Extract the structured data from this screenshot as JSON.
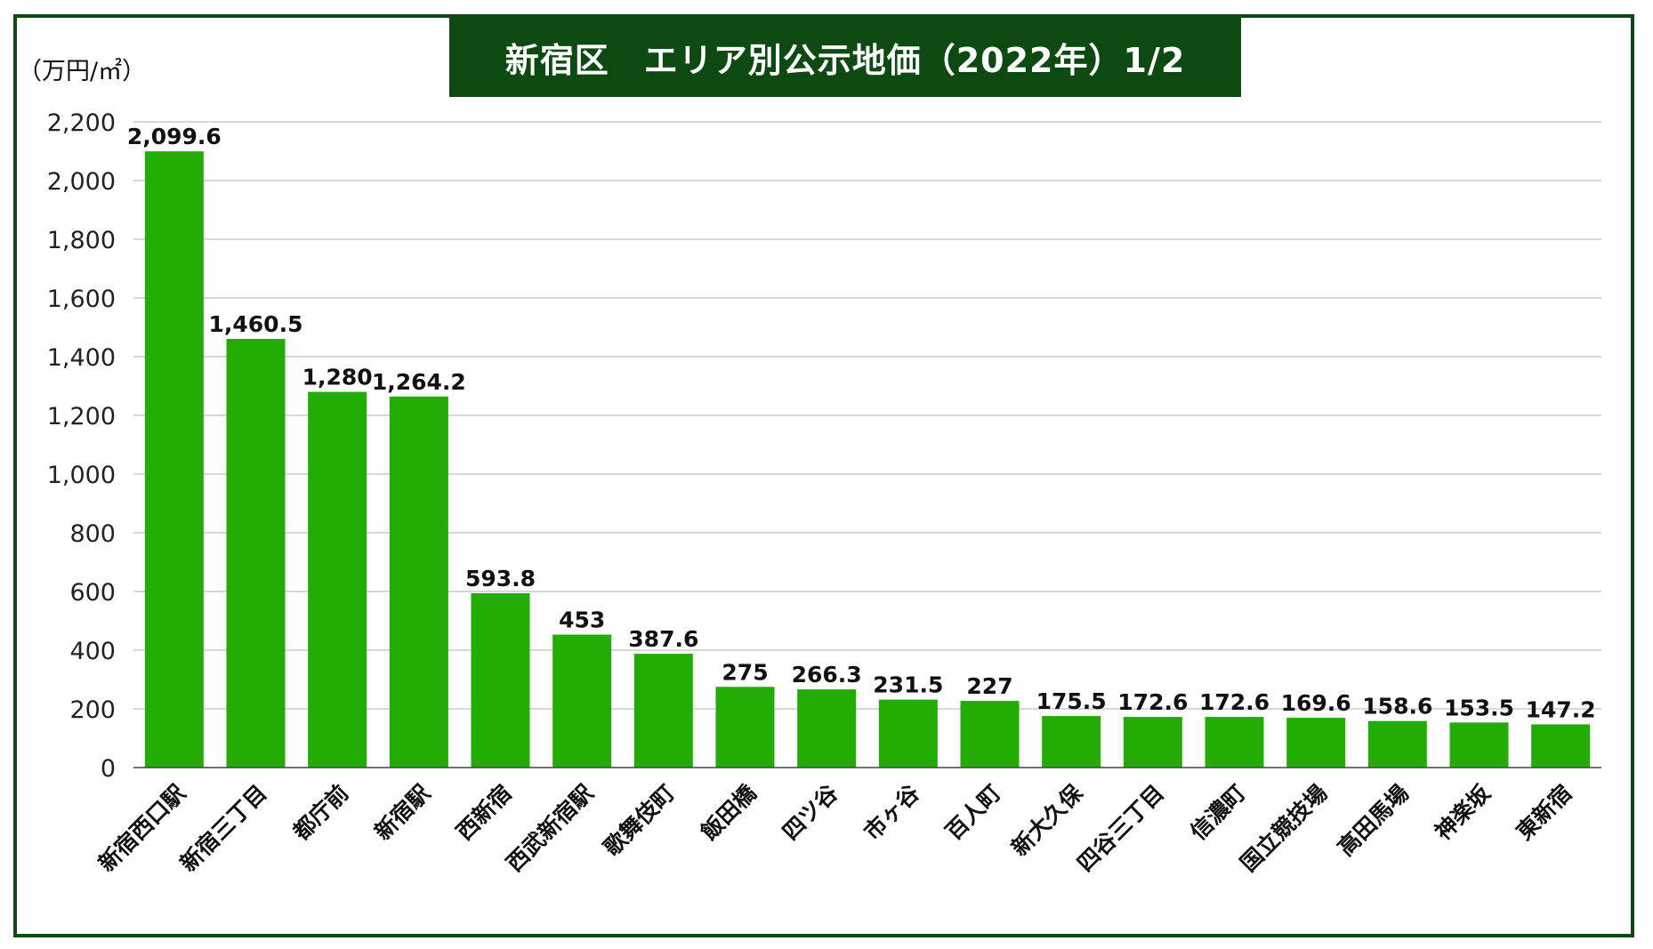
{
  "title": "新宿区　エリア別公示地価（2022年）1/2",
  "unit_label": "（万円/㎡）",
  "colors": {
    "bar": "#22ad04",
    "frame": "#0d4a12",
    "grid": "#cccccc"
  },
  "chart_data": {
    "type": "bar",
    "title": "新宿区　エリア別公示地価（2022年）1/2",
    "ylabel": "（万円/㎡）",
    "xlabel": "",
    "ylim": [
      0,
      2200
    ],
    "yticks": [
      0,
      200,
      400,
      600,
      800,
      1000,
      1200,
      1400,
      1600,
      1800,
      2000,
      2200
    ],
    "ytick_labels": [
      "0",
      "200",
      "400",
      "600",
      "800",
      "1,000",
      "1,200",
      "1,400",
      "1,600",
      "1,800",
      "2,000",
      "2,200"
    ],
    "grid": true,
    "categories": [
      "新宿西口駅",
      "新宿三丁目",
      "都庁前",
      "新宿駅",
      "西新宿",
      "西武新宿駅",
      "歌舞伎町",
      "飯田橋",
      "四ツ谷",
      "市ヶ谷",
      "百人町",
      "新大久保",
      "四谷三丁目",
      "信濃町",
      "国立競技場",
      "高田馬場",
      "神楽坂",
      "東新宿"
    ],
    "values": [
      2099.6,
      1460.5,
      1280,
      1264.2,
      593.8,
      453,
      387.6,
      275,
      266.3,
      231.5,
      227,
      175.5,
      172.6,
      172.6,
      169.6,
      158.6,
      153.5,
      147.2
    ],
    "value_labels": [
      "2,099.6",
      "1,460.5",
      "1,280",
      "1,264.2",
      "593.8",
      "453",
      "387.6",
      "275",
      "266.3",
      "231.5",
      "227",
      "175.5",
      "172.6",
      "172.6",
      "169.6",
      "158.6",
      "153.5",
      "147.2"
    ]
  }
}
